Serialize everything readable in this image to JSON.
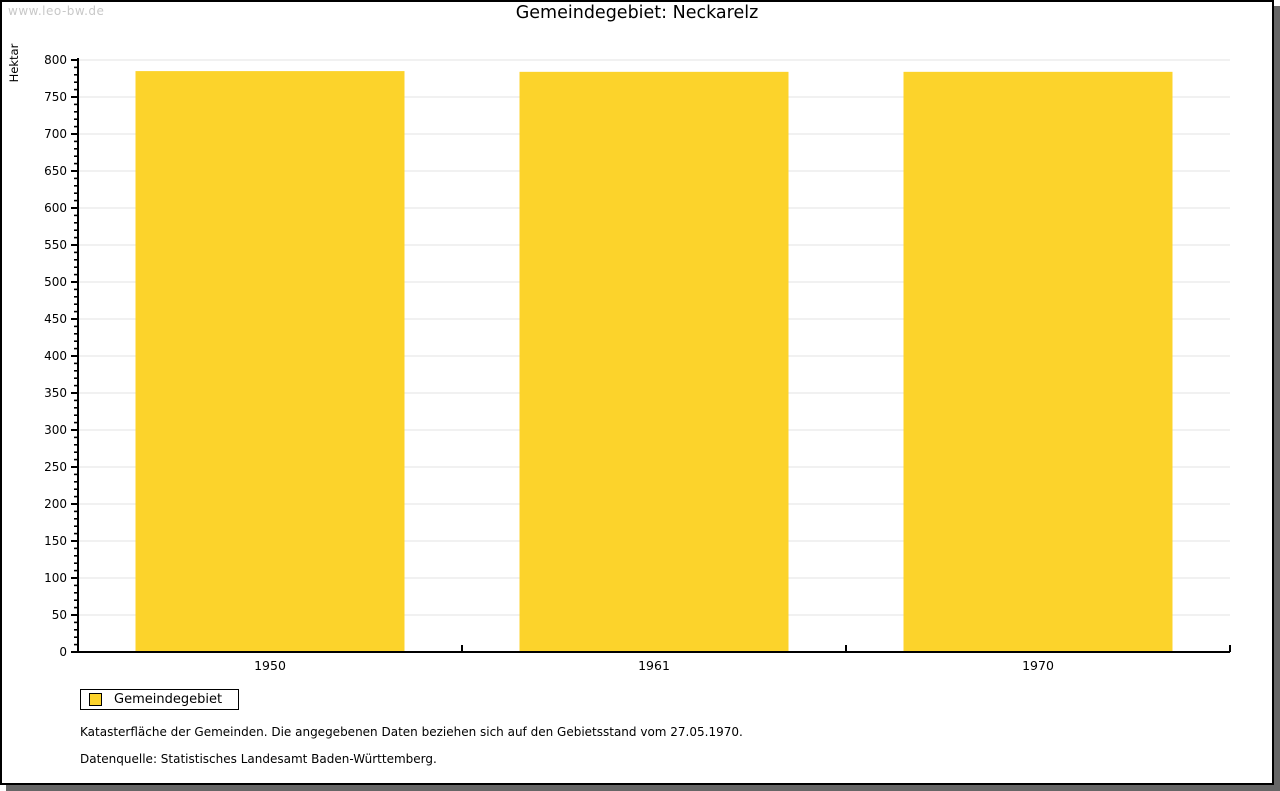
{
  "watermark": "www.leo-bw.de",
  "title": "Gemeindegebiet: Neckarelz",
  "legend": {
    "items": [
      {
        "label": "Gemeindegebiet",
        "color": "#FCD32B"
      }
    ]
  },
  "footnotes": [
    "Katasterfläche der Gemeinden. Die angegebenen Daten beziehen sich auf den Gebietsstand vom 27.05.1970.",
    "Datenquelle: Statistisches Landesamt Baden-Württemberg."
  ],
  "chart_data": {
    "type": "bar",
    "categories": [
      "1950",
      "1961",
      "1970"
    ],
    "values": [
      785,
      784,
      784
    ],
    "series_name": "Gemeindegebiet",
    "title": "Gemeindegebiet: Neckarelz",
    "xlabel": "",
    "ylabel": "Hektar",
    "ylim": [
      0,
      800
    ],
    "y_major_step": 50,
    "y_minor_step": 10,
    "grid": true,
    "legend_position": "bottom-left"
  },
  "colors": {
    "bar": "#FCD32B",
    "grid": "#E3E3E3",
    "axis": "#000000",
    "watermark": "#C8C8C8",
    "frame_shadow": "#666666"
  }
}
